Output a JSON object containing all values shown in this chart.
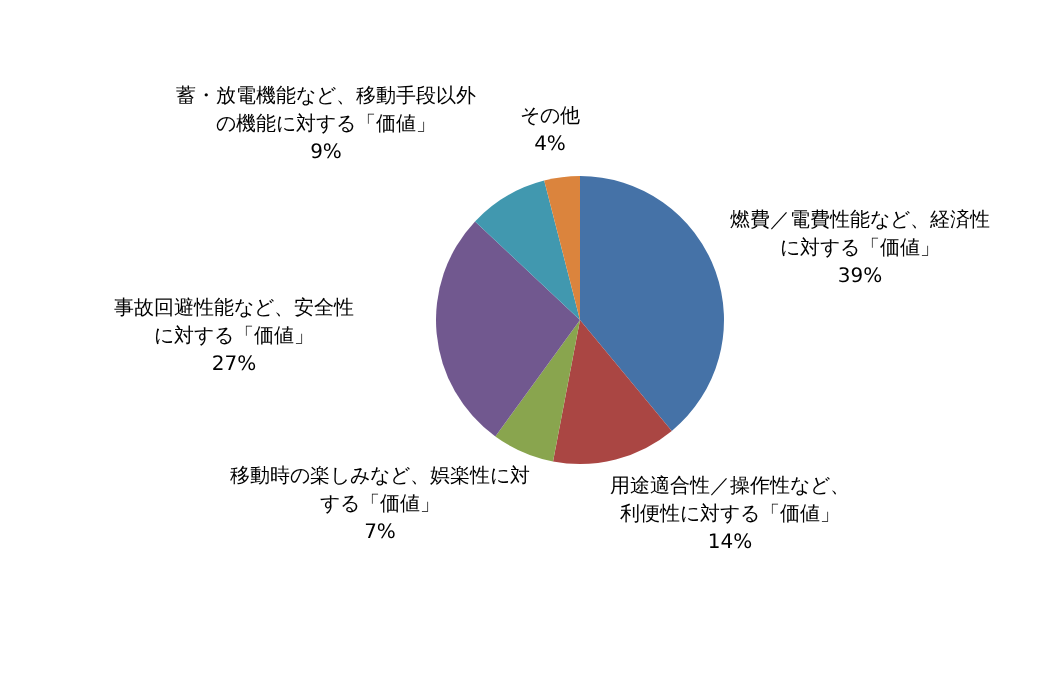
{
  "chart_data": {
    "type": "pie",
    "categories": [
      "燃費／電費性能など、経済性に対する「価値」",
      "用途適合性／操作性など、利便性に対する「価値」",
      "移動時の楽しみなど、娯楽性に対する「価値」",
      "事故回避性能など、安全性に対する「価値」",
      "蓄・放電機能など、移動手段以外の機能に対する「価値」",
      "その他"
    ],
    "values": [
      39,
      14,
      7,
      27,
      9,
      4
    ],
    "colors": [
      "#4572a7",
      "#aa4643",
      "#89a54e",
      "#71588f",
      "#4198af",
      "#db843d"
    ],
    "value_labels": [
      "39%",
      "14%",
      "7%",
      "27%",
      "9%",
      "4%"
    ]
  }
}
